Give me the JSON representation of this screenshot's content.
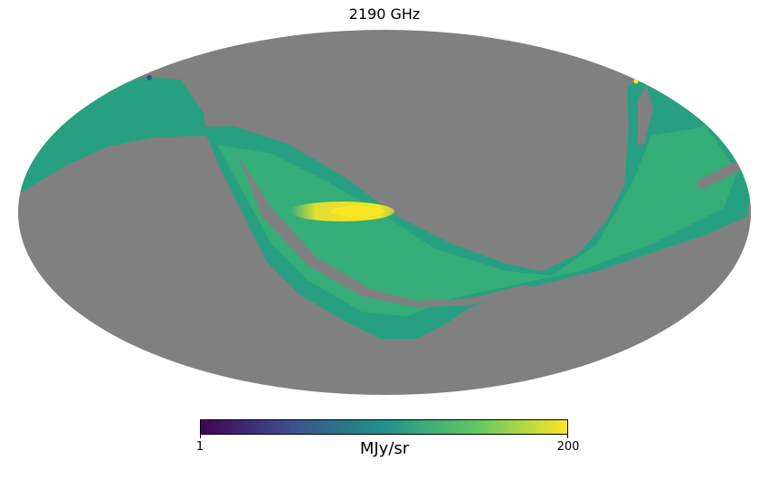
{
  "title": "2190 GHz",
  "map": {
    "projection": "mollweide",
    "mask_color": "#808080",
    "colormap": "viridis",
    "colormap_stops": [
      "#440154",
      "#3b528b",
      "#21918c",
      "#5ec962",
      "#fde725"
    ]
  },
  "colorbar": {
    "min_label": "1",
    "max_label": "200",
    "unit": "MJy/sr"
  }
}
